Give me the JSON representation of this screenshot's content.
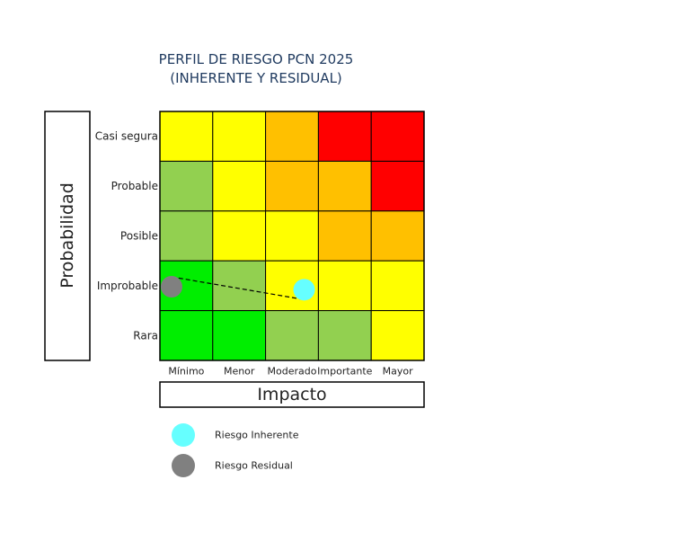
{
  "chart_data": {
    "type": "heatmap",
    "title": "PERFIL DE RIESGO PCN 2025",
    "subtitle": "(INHERENTE Y RESIDUAL)",
    "xlabel": "Impacto",
    "ylabel": "Probabilidad",
    "x_categories": [
      "Mínimo",
      "Menor",
      "Moderado",
      "Importante",
      "Mayor"
    ],
    "y_categories": [
      "Casi segura",
      "Probable",
      "Posible",
      "Improbable",
      "Rara"
    ],
    "levels": {
      "G": "#00ee00",
      "LG": "#92d050",
      "Y": "#ffff00",
      "O": "#ffc000",
      "R": "#ff0000"
    },
    "cells": [
      [
        "Y",
        "Y",
        "O",
        "R",
        "R"
      ],
      [
        "LG",
        "Y",
        "O",
        "O",
        "R"
      ],
      [
        "LG",
        "Y",
        "Y",
        "O",
        "O"
      ],
      [
        "G",
        "LG",
        "Y",
        "Y",
        "Y"
      ],
      [
        "G",
        "G",
        "LG",
        "LG",
        "Y"
      ]
    ],
    "points": [
      {
        "name": "Riesgo Inherente",
        "impact": "Moderado",
        "probability": "Improbable",
        "color": "#66ffff"
      },
      {
        "name": "Riesgo Residual",
        "impact": "Mínimo",
        "probability": "Improbable",
        "color": "#808080"
      }
    ],
    "connector": "dashed",
    "legend": "bottom"
  }
}
